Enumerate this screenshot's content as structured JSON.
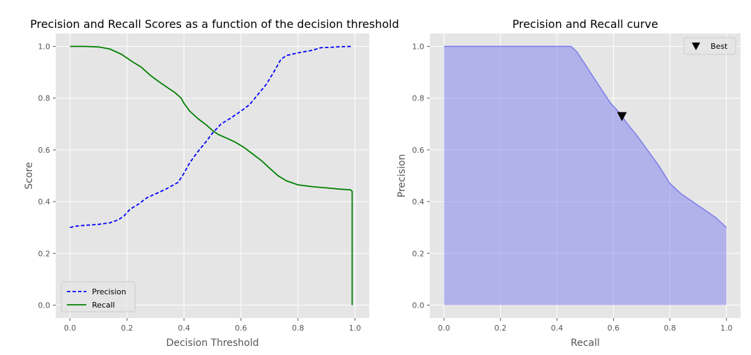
{
  "chart_data": [
    {
      "type": "line",
      "title": "Precision and Recall Scores as a function of the decision threshold",
      "xlabel": "Decision Threshold",
      "ylabel": "Score",
      "xlim": [
        -0.05,
        1.05
      ],
      "ylim": [
        -0.05,
        1.05
      ],
      "xticks": [
        "0.0",
        "0.2",
        "0.4",
        "0.6",
        "0.8",
        "1.0"
      ],
      "yticks": [
        "0.0",
        "0.2",
        "0.4",
        "0.6",
        "0.8",
        "1.0"
      ],
      "grid": true,
      "legend_position": "lower-left",
      "series": [
        {
          "name": "Precision",
          "color": "#0000ff",
          "style": "dashed",
          "x": [
            0.0,
            0.02,
            0.05,
            0.1,
            0.14,
            0.17,
            0.19,
            0.21,
            0.24,
            0.27,
            0.3,
            0.34,
            0.38,
            0.4,
            0.42,
            0.45,
            0.48,
            0.5,
            0.53,
            0.56,
            0.6,
            0.63,
            0.66,
            0.69,
            0.72,
            0.74,
            0.76,
            0.8,
            0.85,
            0.88,
            0.92,
            0.95,
            0.99
          ],
          "y": [
            0.3,
            0.305,
            0.308,
            0.312,
            0.318,
            0.33,
            0.345,
            0.37,
            0.39,
            0.415,
            0.43,
            0.45,
            0.475,
            0.51,
            0.55,
            0.595,
            0.635,
            0.665,
            0.7,
            0.72,
            0.75,
            0.775,
            0.815,
            0.855,
            0.91,
            0.95,
            0.965,
            0.975,
            0.985,
            0.995,
            0.997,
            0.999,
            1.0
          ]
        },
        {
          "name": "Recall",
          "color": "#008000",
          "style": "solid",
          "x": [
            0.0,
            0.05,
            0.1,
            0.14,
            0.16,
            0.18,
            0.2,
            0.22,
            0.25,
            0.28,
            0.31,
            0.35,
            0.37,
            0.39,
            0.4,
            0.42,
            0.45,
            0.48,
            0.5,
            0.52,
            0.55,
            0.58,
            0.61,
            0.64,
            0.67,
            0.7,
            0.73,
            0.76,
            0.8,
            0.85,
            0.9,
            0.95,
            0.98,
            0.985,
            0.99,
            0.99
          ],
          "y": [
            1.0,
            1.0,
            0.998,
            0.99,
            0.98,
            0.97,
            0.955,
            0.94,
            0.92,
            0.89,
            0.865,
            0.835,
            0.82,
            0.8,
            0.78,
            0.75,
            0.72,
            0.695,
            0.675,
            0.66,
            0.645,
            0.63,
            0.61,
            0.585,
            0.56,
            0.53,
            0.5,
            0.48,
            0.465,
            0.458,
            0.453,
            0.448,
            0.446,
            0.445,
            0.44,
            0.0
          ]
        }
      ]
    },
    {
      "type": "area",
      "title": "Precision and Recall curve",
      "xlabel": "Recall",
      "ylabel": "Precision",
      "xlim": [
        -0.05,
        1.05
      ],
      "ylim": [
        -0.05,
        1.05
      ],
      "xticks": [
        "0.0",
        "0.2",
        "0.4",
        "0.6",
        "0.8",
        "1.0"
      ],
      "yticks": [
        "0.0",
        "0.2",
        "0.4",
        "0.6",
        "0.8",
        "1.0"
      ],
      "grid": true,
      "legend_position": "top-right",
      "fill_color": "#8888ee",
      "x": [
        0.0,
        0.45,
        0.47,
        0.5,
        0.53,
        0.56,
        0.59,
        0.62,
        0.65,
        0.68,
        0.72,
        0.76,
        0.8,
        0.84,
        0.88,
        0.92,
        0.96,
        0.99,
        1.0
      ],
      "y": [
        1.0,
        1.0,
        0.98,
        0.93,
        0.88,
        0.83,
        0.78,
        0.745,
        0.7,
        0.66,
        0.6,
        0.54,
        0.47,
        0.43,
        0.4,
        0.37,
        0.34,
        0.31,
        0.3
      ],
      "best_point": {
        "label": "Best",
        "x": 0.63,
        "y": 0.73
      }
    }
  ]
}
